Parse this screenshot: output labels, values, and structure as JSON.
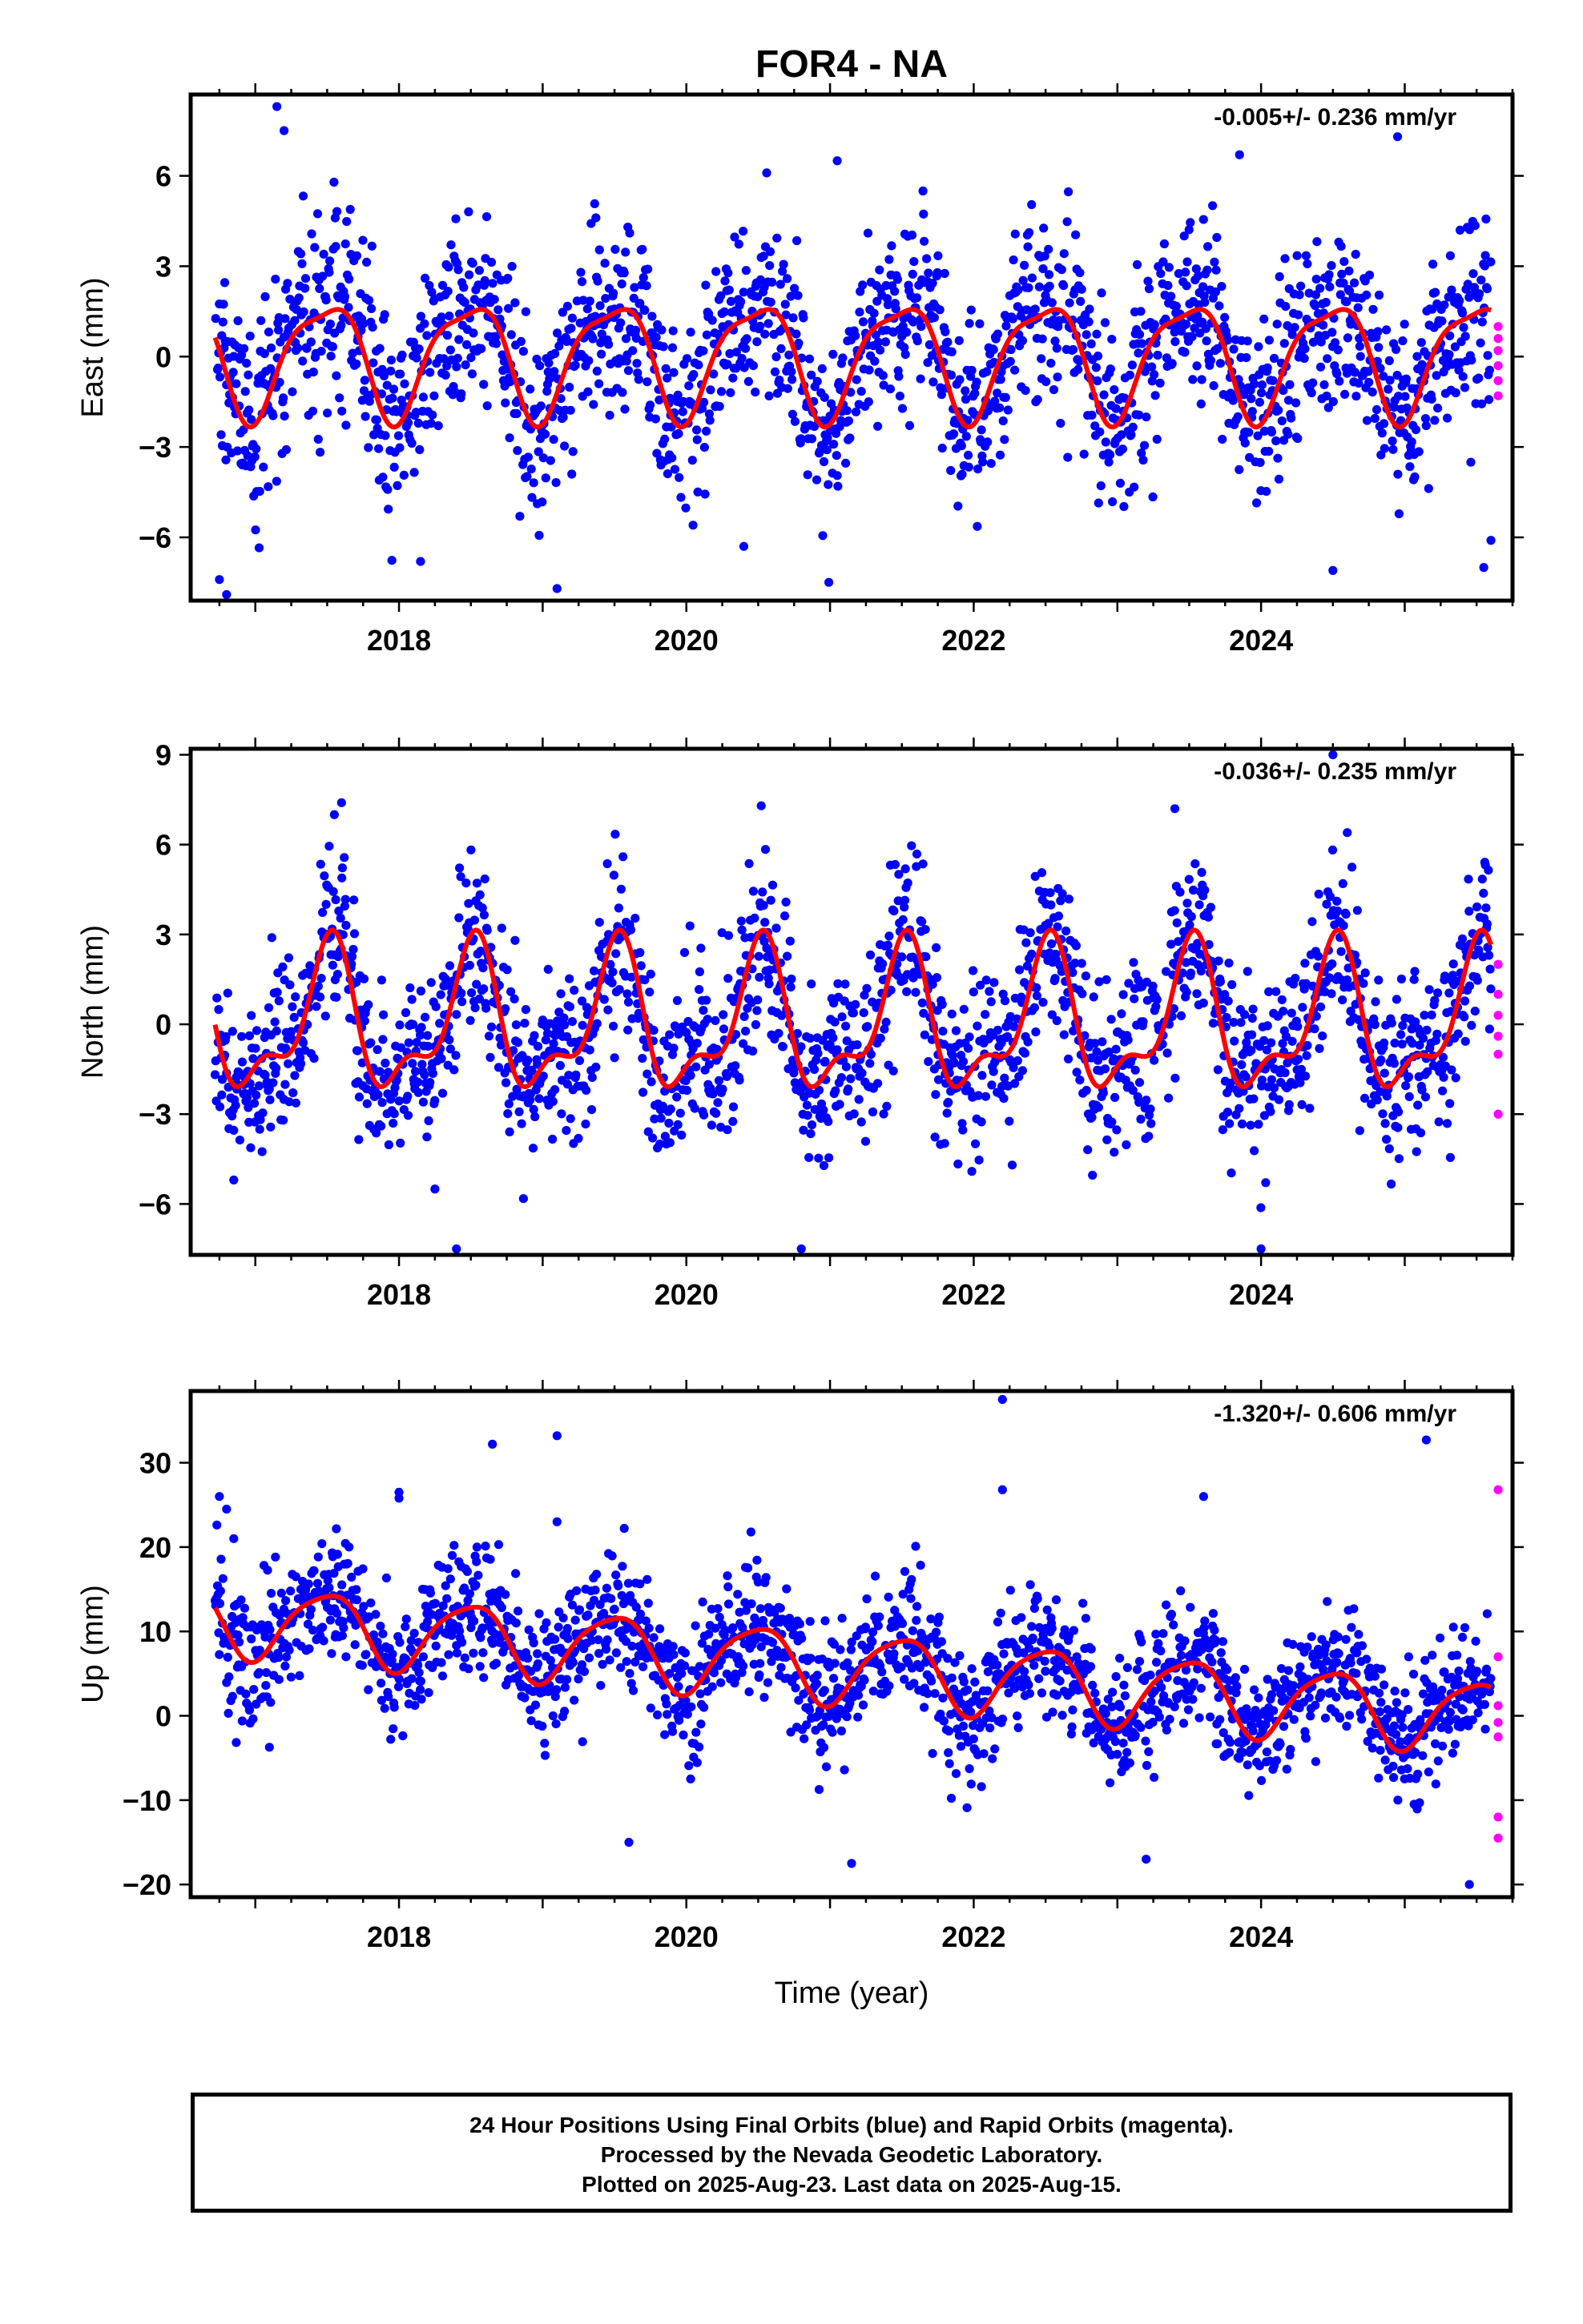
{
  "title": "FOR4 - NA",
  "colors": {
    "final_orbits": "#0000ff",
    "rapid_orbits": "#ff00ff",
    "model": "#ff0000"
  },
  "chart_data": [
    {
      "type": "scatter",
      "component": "east",
      "ylabel": "East (mm)",
      "xlabel": "",
      "rate_label": "-0.005+/- 0.236 mm/yr",
      "xlim": [
        2016.55,
        2025.75
      ],
      "ylim": [
        -8.1,
        8.7
      ],
      "yticks": [
        -6,
        -3,
        0,
        3,
        6
      ],
      "xticks": [
        2018,
        2020,
        2022,
        2024
      ],
      "model": {
        "offset": 0,
        "rate": 0,
        "sin_annual": 0.2,
        "cos_annual": -1.85,
        "sin_semi": 0.3,
        "cos_semi": -0.4,
        "t0": 2016.7
      },
      "scatter_sd": 1.55,
      "rapid_points": {
        "x": 2025.65,
        "y": [
          1.0,
          0.6,
          0.2,
          -0.3,
          -0.8,
          -1.3
        ]
      },
      "outliers": [
        [
          2017.15,
          8.3
        ],
        [
          2017.2,
          7.5
        ],
        [
          2016.75,
          -7.4
        ],
        [
          2016.8,
          -7.9
        ],
        [
          2018.15,
          -6.8
        ],
        [
          2019.1,
          -7.7
        ],
        [
          2021.05,
          6.5
        ],
        [
          2023.85,
          6.7
        ],
        [
          2024.95,
          7.3
        ],
        [
          2024.5,
          -7.1
        ],
        [
          2025.55,
          -7.0
        ],
        [
          2020.4,
          -6.3
        ],
        [
          2025.6,
          -6.1
        ]
      ]
    },
    {
      "type": "scatter",
      "component": "north",
      "ylabel": "North (mm)",
      "xlabel": "",
      "rate_label": "-0.036+/- 0.235 mm/yr",
      "xlim": [
        2016.55,
        2025.75
      ],
      "ylim": [
        -7.7,
        9.2
      ],
      "yticks": [
        -6,
        -3,
        0,
        3,
        6,
        9
      ],
      "xticks": [
        2018,
        2020,
        2022,
        2024
      ],
      "model": {
        "offset": 0,
        "rate": 0,
        "sin_annual": -0.1,
        "cos_annual": -2.2,
        "sin_semi": 0.6,
        "cos_semi": 0.8,
        "t0": 2016.7
      },
      "scatter_sd": 1.4,
      "rapid_points": {
        "x": 2025.65,
        "y": [
          2.0,
          1.0,
          0.3,
          -0.4,
          -1.0,
          -3.0
        ]
      },
      "outliers": [
        [
          2017.6,
          7.4
        ],
        [
          2017.55,
          7.0
        ],
        [
          2018.4,
          -7.5
        ],
        [
          2020.8,
          -7.5
        ],
        [
          2023.4,
          7.2
        ],
        [
          2024.5,
          9.0
        ],
        [
          2024.0,
          -7.5
        ],
        [
          2024.6,
          6.4
        ],
        [
          2016.85,
          -5.2
        ],
        [
          2018.25,
          -5.5
        ]
      ]
    },
    {
      "type": "scatter",
      "component": "up",
      "ylabel": "Up (mm)",
      "xlabel": "Time (year)",
      "rate_label": "-1.320+/- 0.606 mm/yr",
      "xlim": [
        2016.55,
        2025.75
      ],
      "ylim": [
        -21.5,
        38.5
      ],
      "yticks": [
        -20,
        -10,
        0,
        10,
        20,
        30
      ],
      "xticks": [
        2018,
        2020,
        2022,
        2024
      ],
      "model": {
        "offset": 11.6,
        "rate": -1.32,
        "sin_annual": 0.3,
        "cos_annual": -4.2,
        "sin_semi": 0.5,
        "cos_semi": -0.6,
        "t0": 2016.7
      },
      "scatter_sd": 3.9,
      "rapid_points": {
        "x": 2025.65,
        "y": [
          26.8,
          7.0,
          1.2,
          -0.8,
          -2.5,
          -12.0,
          -14.5
        ]
      },
      "outliers": [
        [
          2016.75,
          26.0
        ],
        [
          2016.8,
          24.5
        ],
        [
          2016.85,
          21.0
        ],
        [
          2018.0,
          26.5
        ],
        [
          2018.0,
          25.8
        ],
        [
          2018.65,
          32.2
        ],
        [
          2019.1,
          33.2
        ],
        [
          2019.1,
          23.0
        ],
        [
          2022.2,
          37.5
        ],
        [
          2022.2,
          26.8
        ],
        [
          2023.6,
          26.0
        ],
        [
          2025.15,
          32.7
        ],
        [
          2021.15,
          -17.5
        ],
        [
          2025.45,
          -20.0
        ],
        [
          2019.6,
          -15.0
        ],
        [
          2023.2,
          -17.0
        ]
      ]
    }
  ],
  "footer": {
    "line1": "24 Hour Positions Using Final Orbits (blue) and Rapid Orbits (magenta).",
    "line2": "Processed by the Nevada Geodetic Laboratory.",
    "line3": "Plotted on 2025-Aug-23. Last data on 2025-Aug-15."
  }
}
